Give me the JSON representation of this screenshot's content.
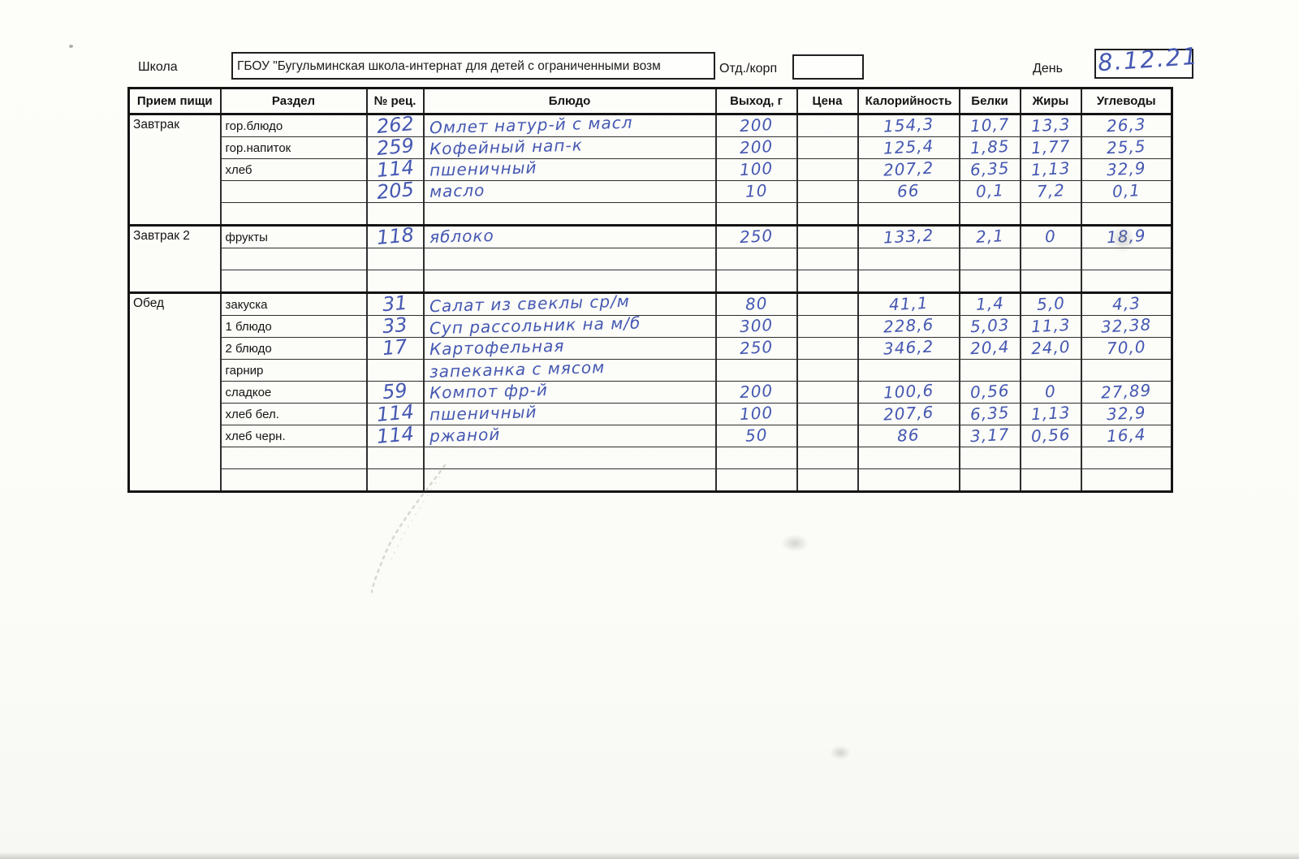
{
  "page": {
    "school_label": "Школа",
    "school_name": "ГБОУ \"Бугульминская школа-интернат для детей с ограниченными возм",
    "dept_label": "Отд./корп",
    "dept_value": "",
    "day_label": "День",
    "day_value": "8.12.21"
  },
  "colors": {
    "ink_blue": "#4558b2",
    "line_black": "#141414",
    "paper": "#fcfcf9"
  },
  "table": {
    "headers": [
      "Прием пищи",
      "Раздел",
      "№ рец.",
      "Блюдо",
      "Выход, г",
      "Цена",
      "Калорийность",
      "Белки",
      "Жиры",
      "Углеводы"
    ],
    "sections": [
      {
        "meal": "Завтрак",
        "rows": [
          {
            "razdel": "гор.блюдо",
            "rec": "262",
            "dish": "Омлет натур-й с масл",
            "out": "200",
            "price": "",
            "kcal": "154,3",
            "prot": "10,7",
            "fat": "13,3",
            "carb": "26,3"
          },
          {
            "razdel": "гор.напиток",
            "rec": "259",
            "dish": "Кофейный нап-к",
            "out": "200",
            "price": "",
            "kcal": "125,4",
            "prot": "1,85",
            "fat": "1,77",
            "carb": "25,5"
          },
          {
            "razdel": "хлеб",
            "rec": "114",
            "dish": "пшеничный",
            "out": "100",
            "price": "",
            "kcal": "207,2",
            "prot": "6,35",
            "fat": "1,13",
            "carb": "32,9"
          },
          {
            "razdel": "",
            "rec": "205",
            "dish": "масло",
            "out": "10",
            "price": "",
            "kcal": "66",
            "prot": "0,1",
            "fat": "7,2",
            "carb": "0,1"
          },
          {
            "razdel": "",
            "rec": "",
            "dish": "",
            "out": "",
            "price": "",
            "kcal": "",
            "prot": "",
            "fat": "",
            "carb": ""
          }
        ]
      },
      {
        "meal": "Завтрак 2",
        "rows": [
          {
            "razdel": "фрукты",
            "rec": "118",
            "dish": "яблоко",
            "out": "250",
            "price": "",
            "kcal": "133,2",
            "prot": "2,1",
            "fat": "0",
            "carb": "18,9"
          },
          {
            "razdel": "",
            "rec": "",
            "dish": "",
            "out": "",
            "price": "",
            "kcal": "",
            "prot": "",
            "fat": "",
            "carb": ""
          },
          {
            "razdel": "",
            "rec": "",
            "dish": "",
            "out": "",
            "price": "",
            "kcal": "",
            "prot": "",
            "fat": "",
            "carb": ""
          }
        ]
      },
      {
        "meal": "Обед",
        "rows": [
          {
            "razdel": "закуска",
            "rec": "31",
            "dish": "Салат из свеклы ср/м",
            "out": "80",
            "price": "",
            "kcal": "41,1",
            "prot": "1,4",
            "fat": "5,0",
            "carb": "4,3"
          },
          {
            "razdel": "1 блюдо",
            "rec": "33",
            "dish": "Суп рассольник на м/б",
            "out": "300",
            "price": "",
            "kcal": "228,6",
            "prot": "5,03",
            "fat": "11,3",
            "carb": "32,38"
          },
          {
            "razdel": "2 блюдо",
            "rec": "17",
            "dish": "Картофельная",
            "out": "250",
            "price": "",
            "kcal": "346,2",
            "prot": "20,4",
            "fat": "24,0",
            "carb": "70,0"
          },
          {
            "razdel": "гарнир",
            "rec": "",
            "dish": "запеканка с мясом",
            "out": "",
            "price": "",
            "kcal": "",
            "prot": "",
            "fat": "",
            "carb": ""
          },
          {
            "razdel": "сладкое",
            "rec": "59",
            "dish": "Компот фр-й",
            "out": "200",
            "price": "",
            "kcal": "100,6",
            "prot": "0,56",
            "fat": "0",
            "carb": "27,89"
          },
          {
            "razdel": "хлеб бел.",
            "rec": "114",
            "dish": "пшеничный",
            "out": "100",
            "price": "",
            "kcal": "207,6",
            "prot": "6,35",
            "fat": "1,13",
            "carb": "32,9"
          },
          {
            "razdel": "хлеб черн.",
            "rec": "114",
            "dish": "ржаной",
            "out": "50",
            "price": "",
            "kcal": "86",
            "prot": "3,17",
            "fat": "0,56",
            "carb": "16,4"
          },
          {
            "razdel": "",
            "rec": "",
            "dish": "",
            "out": "",
            "price": "",
            "kcal": "",
            "prot": "",
            "fat": "",
            "carb": ""
          },
          {
            "razdel": "",
            "rec": "",
            "dish": "",
            "out": "",
            "price": "",
            "kcal": "",
            "prot": "",
            "fat": "",
            "carb": ""
          }
        ]
      }
    ]
  }
}
